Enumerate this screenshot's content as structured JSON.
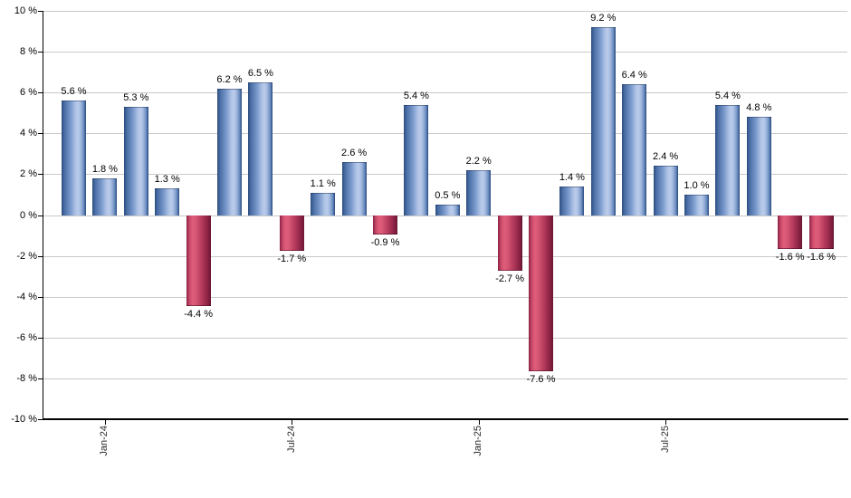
{
  "chart_data": {
    "type": "bar",
    "unit": "%",
    "ylim": [
      -10,
      10
    ],
    "grid": true,
    "legend": false,
    "y_tick_labels": [
      "10 %",
      "8 %",
      "6 %",
      "4 %",
      "2 %",
      "0 %",
      "-2 %",
      "-4 %",
      "-6 %",
      "-8 %",
      "-10 %"
    ],
    "x_ticks": [
      {
        "bar_index": 1,
        "label": "Jan-24"
      },
      {
        "bar_index": 7,
        "label": "Jul-24"
      },
      {
        "bar_index": 13,
        "label": "Jan-25"
      },
      {
        "bar_index": 19,
        "label": "Jul-25"
      }
    ],
    "values": [
      5.6,
      1.8,
      5.3,
      1.3,
      -4.4,
      6.2,
      6.5,
      -1.7,
      1.1,
      2.6,
      -0.9,
      5.4,
      0.5,
      2.2,
      -2.7,
      -7.6,
      1.4,
      9.2,
      6.4,
      2.4,
      1.0,
      5.4,
      4.8,
      -1.6,
      -1.6
    ],
    "value_labels": [
      "5.6 %",
      "1.8 %",
      "5.3 %",
      "1.3 %",
      "-4.4 %",
      "6.2 %",
      "6.5 %",
      "-1.7 %",
      "1.1 %",
      "2.6 %",
      "-0.9 %",
      "5.4 %",
      "0.5 %",
      "2.2 %",
      "-2.7 %",
      "-7.6 %",
      "1.4 %",
      "9.2 %",
      "6.4 %",
      "2.4 %",
      "1.0 %",
      "5.4 %",
      "4.8 %",
      "-1.6 %",
      "-1.6 %"
    ],
    "colors": {
      "positive_bar_dark": "#2c4d7e",
      "positive_bar_light": "#bccdec",
      "negative_bar_dark": "#6a1634",
      "negative_bar_light": "#e05e7c",
      "gridline": "#c9c9c9",
      "axis": "#000000",
      "label_text": "#000000"
    }
  }
}
